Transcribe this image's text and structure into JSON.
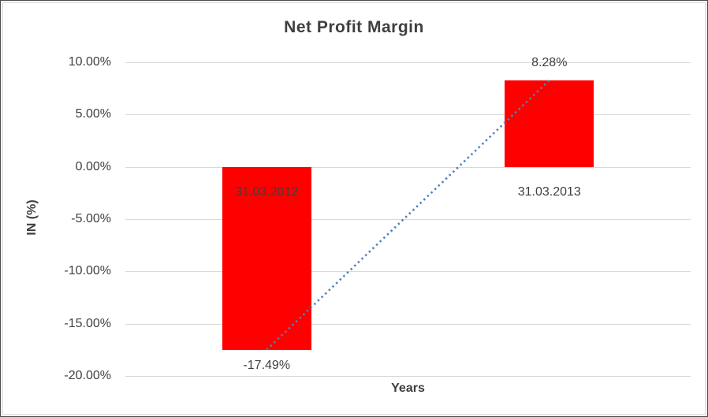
{
  "chart_data": {
    "type": "bar",
    "title": "Net Profit Margin",
    "xlabel": "Years",
    "ylabel": "IN (%)",
    "categories": [
      "31.03.2012",
      "31.03.2013"
    ],
    "values": [
      -17.49,
      8.28
    ],
    "value_labels": [
      "-17.49%",
      "8.28%"
    ],
    "yticks": [
      10,
      5,
      0,
      -5,
      -10,
      -15,
      -20
    ],
    "ytick_labels": [
      "10.00%",
      "5.00%",
      "0.00%",
      "-5.00%",
      "-10.00%",
      "-15.00%",
      "-20.00%"
    ],
    "ylim": [
      -20,
      10
    ],
    "grid": true,
    "legend": false,
    "bar_color": "#ff0000",
    "grid_color": "#d9d9d9",
    "text_color": "#404040",
    "trendline": {
      "type": "linear",
      "style": "dotted",
      "color": "#4f81bd",
      "from": {
        "category": "31.03.2012",
        "value": -17.49
      },
      "to": {
        "category": "31.03.2013",
        "value": 8.28
      }
    }
  }
}
